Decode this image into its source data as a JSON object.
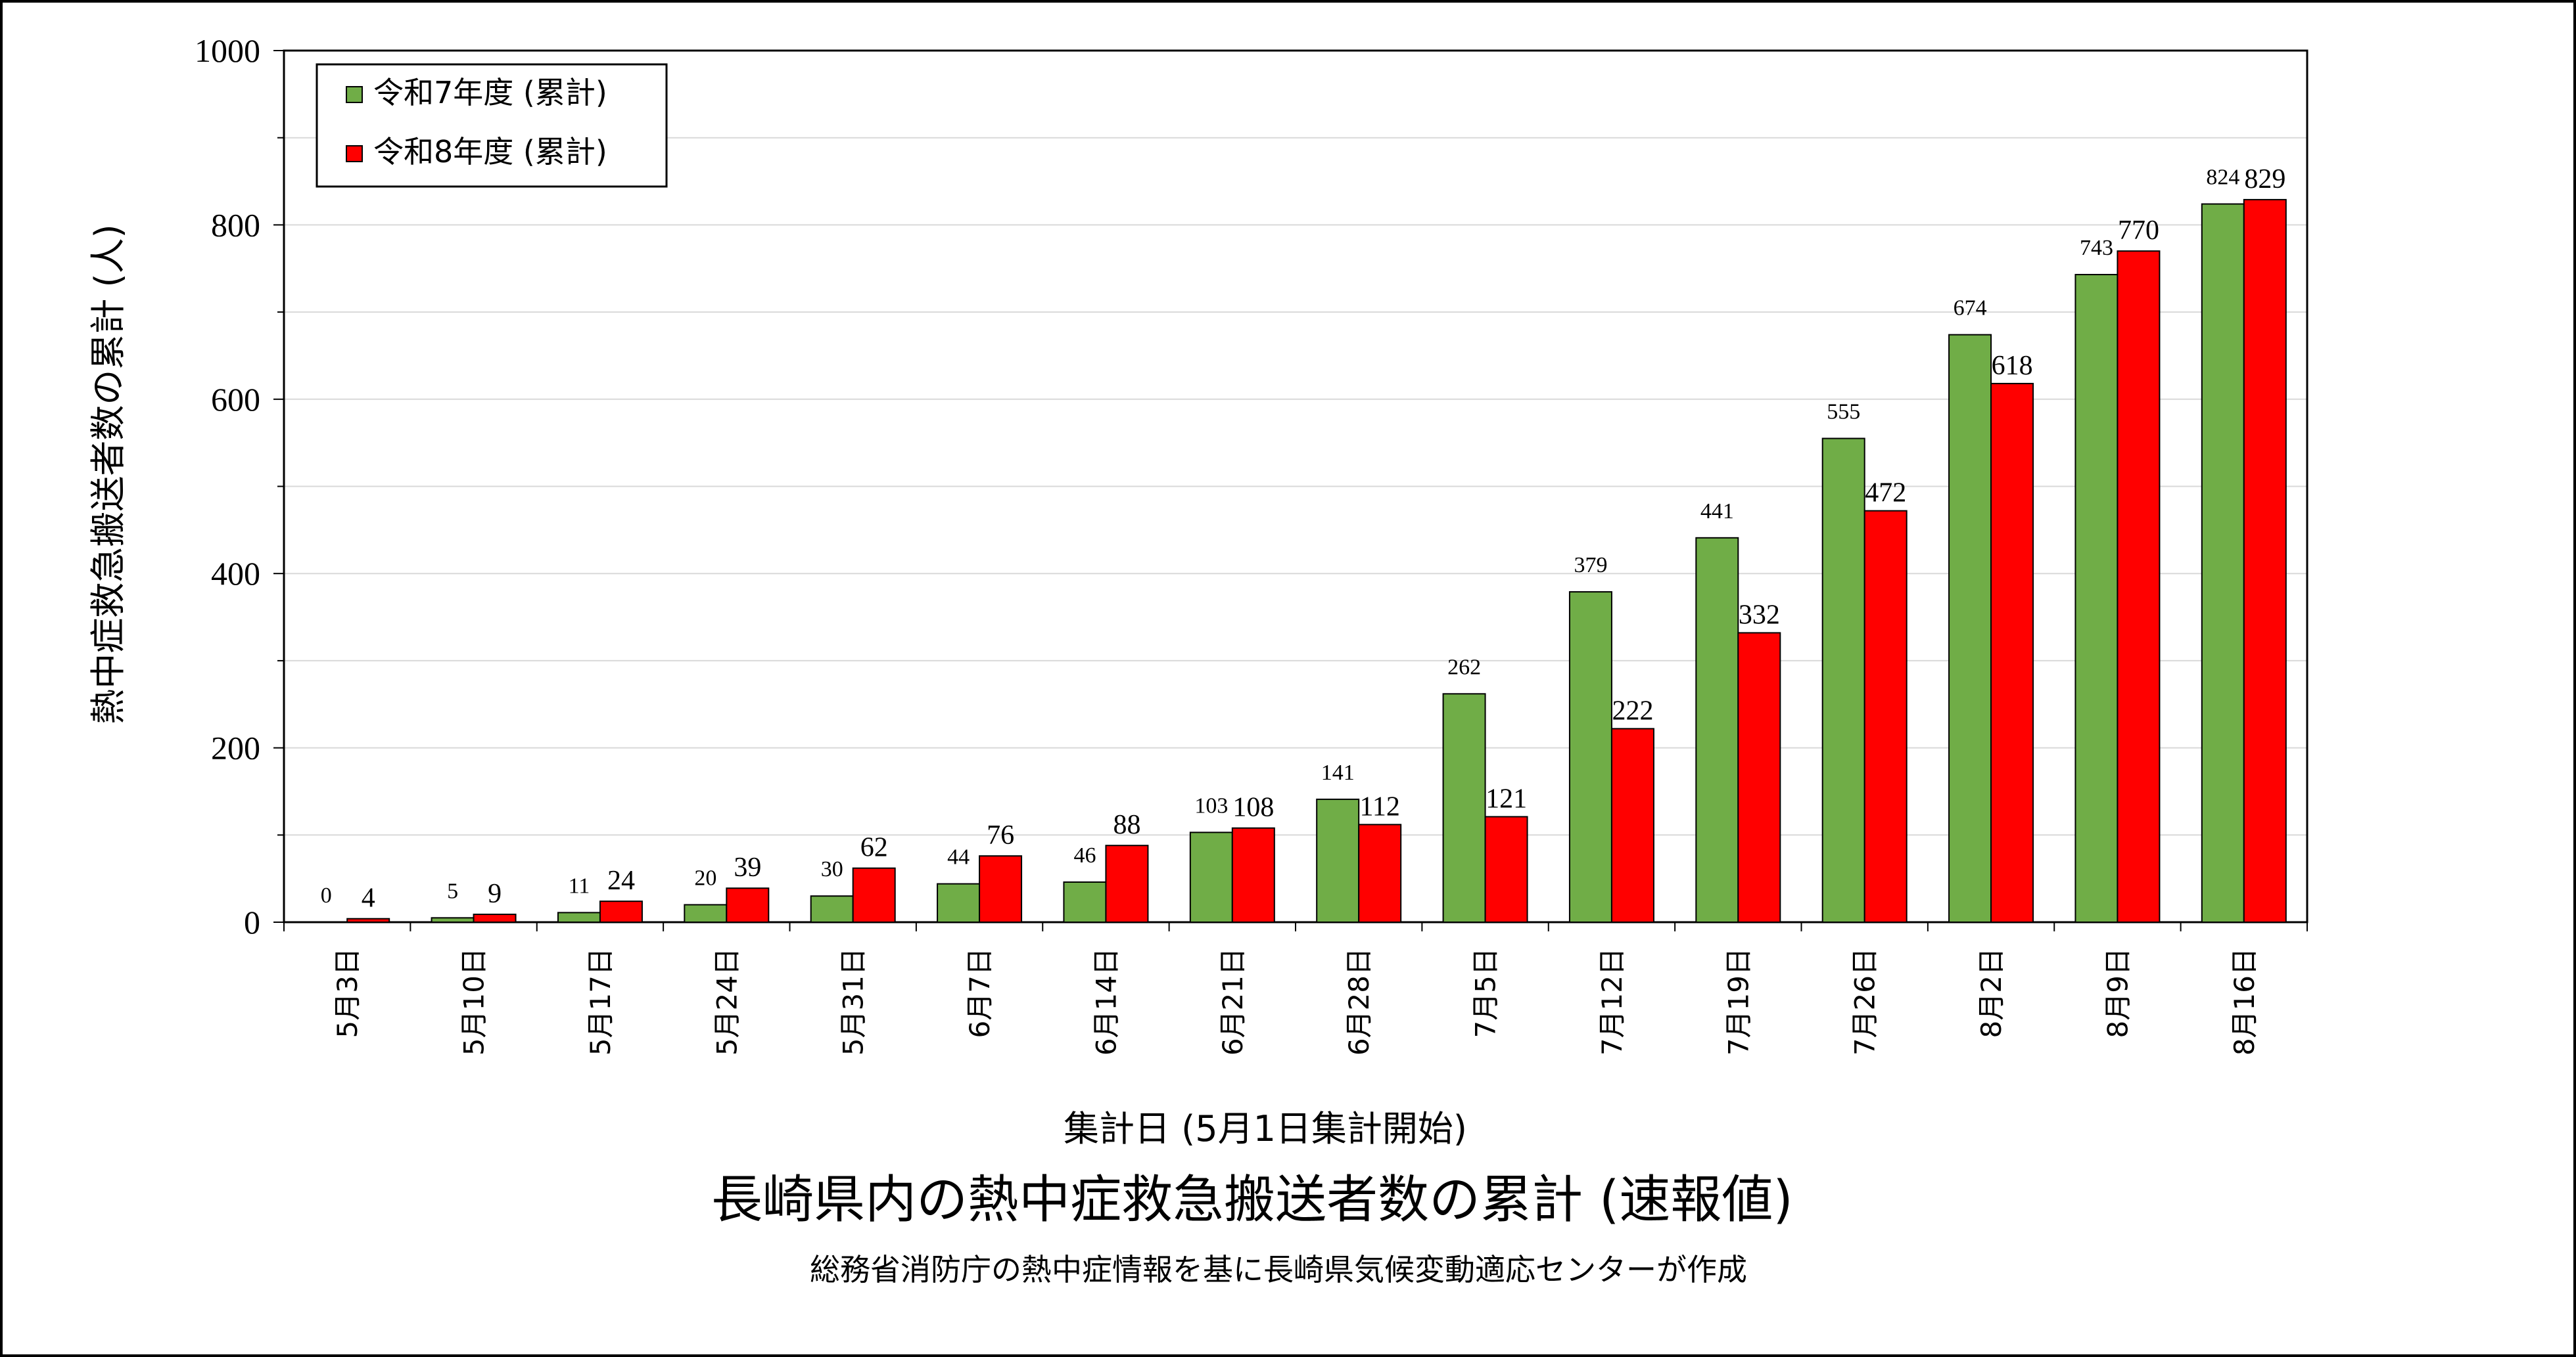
{
  "chart_data": {
    "type": "bar",
    "title": "長崎県内の熱中症救急搬送者数の累計 (速報値)",
    "subtitle": "総務省消防庁の熱中症情報を基に長崎県気候変動適応センターが作成",
    "xlabel": "集計日 (5月1日集計開始)",
    "ylabel": "熱中症救急搬送者数の累計 (人)",
    "ylim": [
      0,
      1000
    ],
    "yticks": [
      "0",
      "200",
      "400",
      "600",
      "800",
      "1000"
    ],
    "grid": true,
    "legend_position": "top-left",
    "categories": [
      "5月3日",
      "5月10日",
      "5月17日",
      "5月24日",
      "5月31日",
      "6月7日",
      "6月14日",
      "6月21日",
      "6月28日",
      "7月5日",
      "7月12日",
      "7月19日",
      "7月26日",
      "8月2日",
      "8月9日",
      "8月16日"
    ],
    "series": [
      {
        "name": "令和7年度 (累計)",
        "color": "#70ad47",
        "values": [
          0,
          5,
          11,
          20,
          30,
          44,
          46,
          103,
          141,
          262,
          379,
          441,
          555,
          674,
          743,
          824
        ]
      },
      {
        "name": "令和8年度 (累計)",
        "color": "#ff0000",
        "values": [
          4,
          9,
          24,
          39,
          62,
          76,
          88,
          108,
          112,
          121,
          222,
          332,
          472,
          618,
          770,
          829
        ]
      }
    ]
  }
}
